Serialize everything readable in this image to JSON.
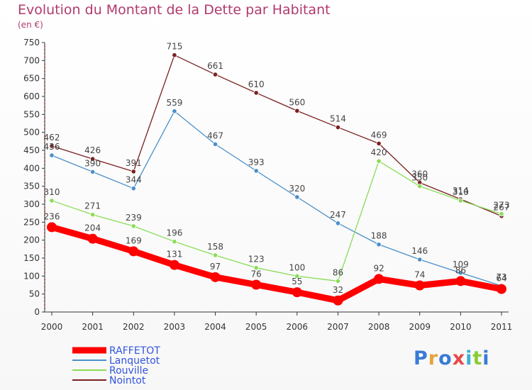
{
  "chart_data": {
    "type": "line",
    "title": "Evolution du Montant de la Dette par Habitant",
    "subtitle": "(en €)",
    "x": [
      "2000",
      "2001",
      "2002",
      "2003",
      "2004",
      "2005",
      "2006",
      "2007",
      "2008",
      "2009",
      "2010",
      "2011"
    ],
    "ylim": [
      0,
      750
    ],
    "yticks": [
      0,
      50,
      100,
      150,
      200,
      250,
      300,
      350,
      400,
      450,
      500,
      550,
      600,
      650,
      700,
      750
    ],
    "grid": false,
    "legend_position": "bottom-left",
    "series": [
      {
        "name": "RAFFETOT",
        "color": "#ff0000",
        "values": [
          236,
          204,
          169,
          131,
          97,
          76,
          55,
          32,
          92,
          74,
          86,
          64
        ]
      },
      {
        "name": "Lanquetot",
        "color": "#4a8fc9",
        "values": [
          436,
          390,
          344,
          559,
          467,
          393,
          320,
          247,
          188,
          146,
          109,
          73
        ]
      },
      {
        "name": "Rouville",
        "color": "#88dd55",
        "values": [
          310,
          271,
          239,
          196,
          158,
          123,
          100,
          86,
          420,
          350,
          310,
          273
        ]
      },
      {
        "name": "Nointot",
        "color": "#7a2020",
        "values": [
          462,
          426,
          391,
          715,
          661,
          610,
          560,
          514,
          469,
          360,
          314,
          267
        ]
      }
    ]
  },
  "logo": {
    "text": "Proxiti"
  }
}
